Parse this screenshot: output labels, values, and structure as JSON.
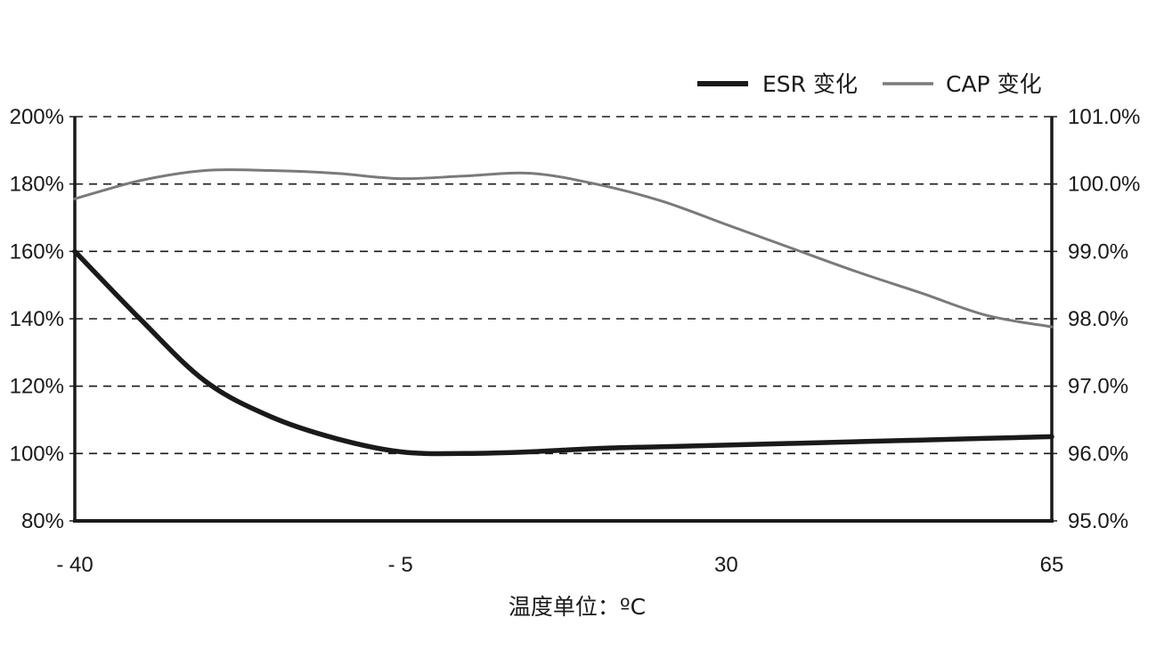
{
  "chart_data": {
    "type": "line",
    "xlabel": "温度单位：ºC",
    "x_ticks": [
      "- 40",
      "- 5",
      "30",
      "65"
    ],
    "x_tick_values": [
      -40,
      -5,
      30,
      65
    ],
    "xlim": [
      -40,
      65
    ],
    "y_left": {
      "lim": [
        80,
        200
      ],
      "ticks": [
        80,
        100,
        120,
        140,
        160,
        180,
        200
      ],
      "tick_labels": [
        "80%",
        "100%",
        "120%",
        "140%",
        "160%",
        "180%",
        "200%"
      ]
    },
    "y_right": {
      "lim": [
        95.0,
        101.0
      ],
      "ticks": [
        95.0,
        96.0,
        97.0,
        98.0,
        99.0,
        100.0,
        101.0
      ],
      "tick_labels": [
        "95.0%",
        "96.0%",
        "97.0%",
        "98.0%",
        "99.0%",
        "100.0%",
        "101.0%"
      ]
    },
    "grid": "horizontal-dashed",
    "legend_position": "top-right",
    "series": [
      {
        "name": "ESR 变化",
        "axis": "left",
        "color": "#1a1a1a",
        "x": [
          -40,
          -33,
          -26,
          -19,
          -12,
          -5,
          2,
          9,
          16,
          23,
          30,
          37,
          44,
          51,
          58,
          65
        ],
        "y": [
          160,
          140,
          121.5,
          111,
          104.5,
          100.5,
          100,
          100.5,
          101.5,
          102,
          102.5,
          103,
          103.5,
          104,
          104.5,
          105
        ]
      },
      {
        "name": "CAP 变化",
        "axis": "right",
        "color": "#7a7a7a",
        "x": [
          -40,
          -33,
          -26,
          -19,
          -12,
          -5,
          2,
          9,
          16,
          23,
          30,
          37,
          44,
          51,
          58,
          65
        ],
        "y": [
          99.78,
          100.05,
          100.2,
          100.2,
          100.16,
          100.08,
          100.12,
          100.16,
          100.0,
          99.75,
          99.4,
          99.05,
          98.7,
          98.38,
          98.05,
          97.88
        ]
      }
    ]
  }
}
